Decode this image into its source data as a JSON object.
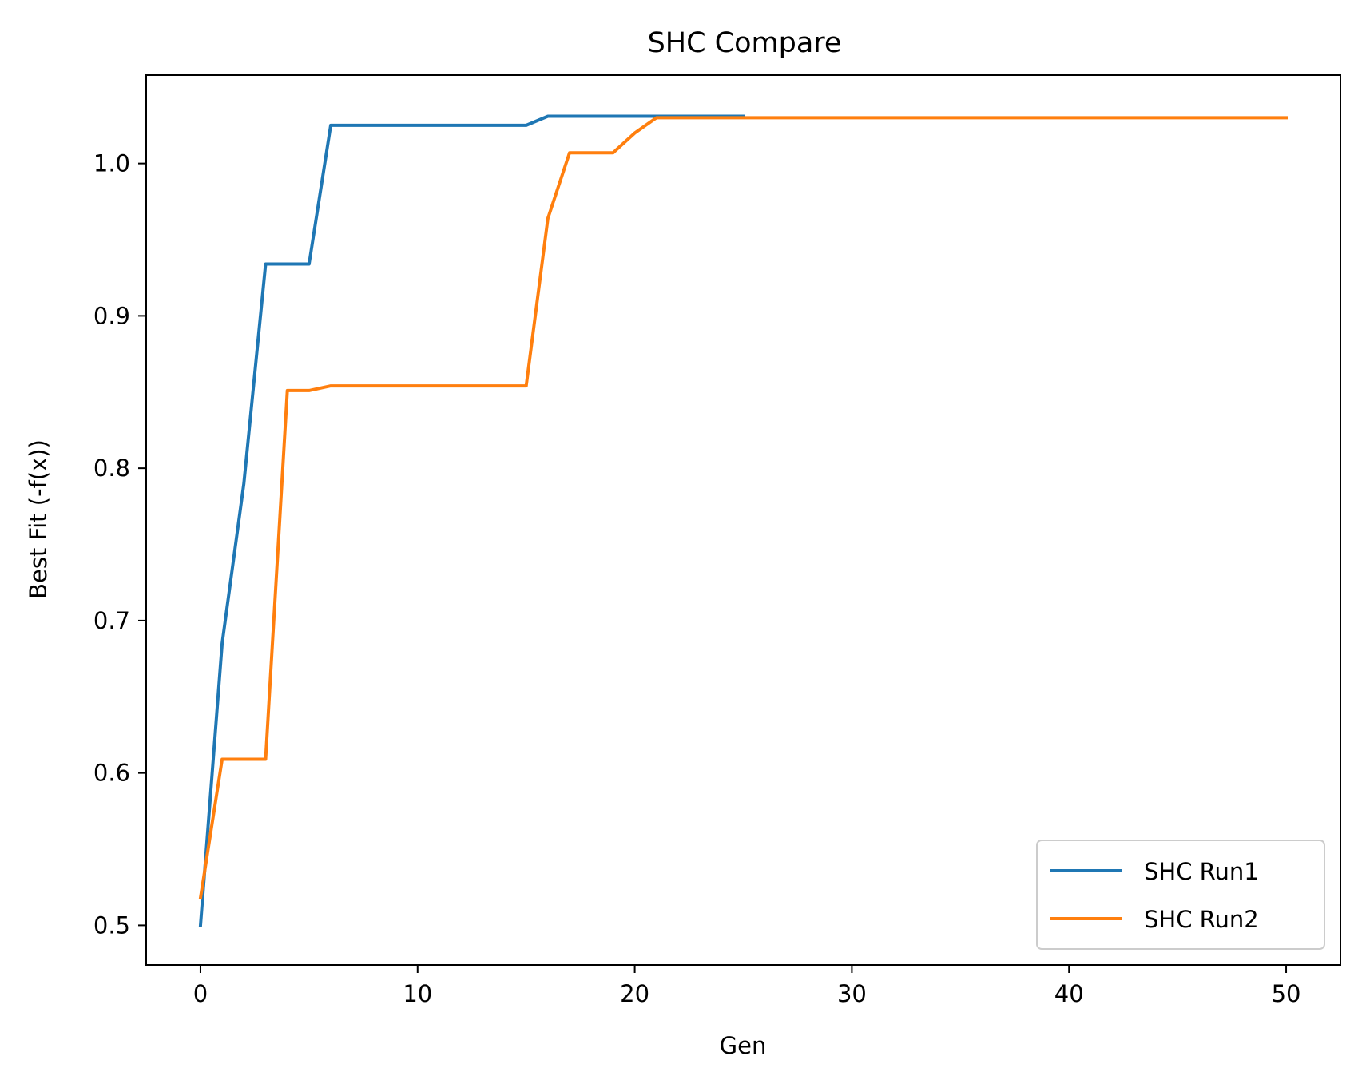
{
  "chart_data": {
    "type": "line",
    "title": "SHC Compare",
    "xlabel": "Gen",
    "ylabel": "Best Fit (-f(x))",
    "xlim": [
      -2.5,
      52.5
    ],
    "ylim": [
      0.474,
      1.058
    ],
    "xticks": [
      0,
      10,
      20,
      30,
      40,
      50
    ],
    "yticks": [
      0.5,
      0.6,
      0.7,
      0.8,
      0.9,
      1.0
    ],
    "xtick_labels": [
      "0",
      "10",
      "20",
      "30",
      "40",
      "50"
    ],
    "ytick_labels": [
      "0.5",
      "0.6",
      "0.7",
      "0.8",
      "0.9",
      "1.0"
    ],
    "grid": false,
    "legend_position": "bottom-right",
    "series": [
      {
        "name": "SHC Run1",
        "color": "#1f77b4",
        "x": [
          0,
          1,
          2,
          3,
          4,
          5,
          6,
          7,
          8,
          9,
          10,
          11,
          12,
          13,
          14,
          15,
          16,
          17,
          18,
          19,
          20,
          21,
          22,
          23,
          24,
          25
        ],
        "y": [
          0.5,
          0.685,
          0.79,
          0.934,
          0.934,
          0.934,
          1.025,
          1.025,
          1.025,
          1.025,
          1.025,
          1.025,
          1.025,
          1.025,
          1.025,
          1.025,
          1.031,
          1.031,
          1.031,
          1.031,
          1.031,
          1.031,
          1.031,
          1.031,
          1.031,
          1.031
        ]
      },
      {
        "name": "SHC Run2",
        "color": "#ff7f0e",
        "x": [
          0,
          1,
          2,
          3,
          4,
          5,
          6,
          7,
          8,
          9,
          10,
          11,
          12,
          13,
          14,
          15,
          16,
          17,
          18,
          19,
          20,
          21,
          22,
          23,
          24,
          25,
          26,
          27,
          28,
          29,
          30,
          31,
          32,
          33,
          34,
          35,
          36,
          37,
          38,
          39,
          40,
          41,
          42,
          43,
          44,
          45,
          46,
          47,
          48,
          49,
          50
        ],
        "y": [
          0.518,
          0.609,
          0.609,
          0.609,
          0.851,
          0.851,
          0.854,
          0.854,
          0.854,
          0.854,
          0.854,
          0.854,
          0.854,
          0.854,
          0.854,
          0.854,
          0.964,
          1.007,
          1.007,
          1.007,
          1.02,
          1.03,
          1.03,
          1.03,
          1.03,
          1.03,
          1.03,
          1.03,
          1.03,
          1.03,
          1.03,
          1.03,
          1.03,
          1.03,
          1.03,
          1.03,
          1.03,
          1.03,
          1.03,
          1.03,
          1.03,
          1.03,
          1.03,
          1.03,
          1.03,
          1.03,
          1.03,
          1.03,
          1.03,
          1.03,
          1.03
        ]
      }
    ]
  }
}
